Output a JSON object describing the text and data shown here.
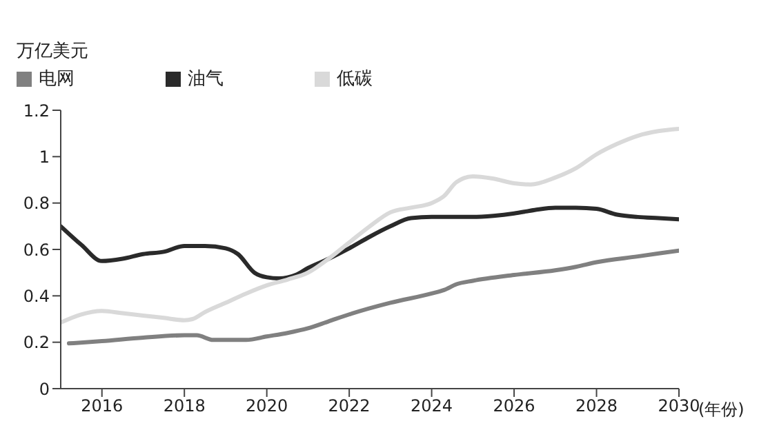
{
  "chart_data": {
    "type": "line",
    "ylabel": "万亿美元",
    "xlabel": "(年份)",
    "xlim": [
      2015,
      2030
    ],
    "xticks": [
      2016,
      2018,
      2020,
      2022,
      2024,
      2026,
      2028,
      2030
    ],
    "ylim": [
      0,
      1.2
    ],
    "yticks": [
      0,
      0.2,
      0.4,
      0.6,
      0.8,
      1,
      1.2
    ],
    "grid": false,
    "legend": "top left",
    "marker": "none",
    "line_style": "solid",
    "series": [
      {
        "name": "电网",
        "color": "#808080",
        "x": [
          2015.2,
          2016,
          2017,
          2018,
          2018.3,
          2018.7,
          2019.5,
          2020,
          2020.5,
          2021,
          2021.5,
          2022,
          2023,
          2024,
          2024.3,
          2024.6,
          2025,
          2026,
          2027,
          2027.5,
          2028,
          2029,
          2030
        ],
        "values": [
          0.195,
          0.205,
          0.22,
          0.23,
          0.23,
          0.21,
          0.21,
          0.225,
          0.24,
          0.26,
          0.29,
          0.32,
          0.37,
          0.41,
          0.425,
          0.45,
          0.465,
          0.49,
          0.51,
          0.525,
          0.545,
          0.57,
          0.595
        ]
      },
      {
        "name": "油气",
        "color": "#2a2a2a",
        "x": [
          2015,
          2015.5,
          2016,
          2016.5,
          2017,
          2017.5,
          2018,
          2018.5,
          2019,
          2019.3,
          2019.7,
          2020,
          2020.3,
          2020.7,
          2021,
          2021.5,
          2022,
          2022.5,
          2023,
          2023.5,
          2024,
          2025,
          2025.5,
          2026,
          2026.5,
          2027,
          2027.5,
          2028,
          2028.5,
          2029,
          2029.5,
          2030
        ],
        "values": [
          0.7,
          0.62,
          0.55,
          0.56,
          0.58,
          0.59,
          0.615,
          0.615,
          0.605,
          0.58,
          0.5,
          0.48,
          0.475,
          0.49,
          0.52,
          0.56,
          0.605,
          0.655,
          0.7,
          0.735,
          0.74,
          0.74,
          0.745,
          0.755,
          0.77,
          0.78,
          0.78,
          0.775,
          0.75,
          0.74,
          0.735,
          0.73
        ]
      },
      {
        "name": "低碳",
        "color": "#d9d9d9",
        "x": [
          2015,
          2015.5,
          2016,
          2016.5,
          2017,
          2017.5,
          2018,
          2018.2,
          2018.5,
          2019,
          2019.5,
          2020,
          2020.5,
          2021,
          2021.5,
          2022,
          2022.5,
          2023,
          2023.5,
          2024,
          2024.3,
          2024.6,
          2025,
          2025.5,
          2026,
          2026.4,
          2027,
          2027.5,
          2028,
          2028.5,
          2029,
          2029.5,
          2030
        ],
        "values": [
          0.285,
          0.32,
          0.335,
          0.325,
          0.315,
          0.305,
          0.295,
          0.3,
          0.33,
          0.37,
          0.41,
          0.445,
          0.47,
          0.5,
          0.56,
          0.63,
          0.7,
          0.76,
          0.78,
          0.8,
          0.83,
          0.89,
          0.915,
          0.905,
          0.885,
          0.88,
          0.91,
          0.95,
          1.01,
          1.055,
          1.09,
          1.11,
          1.12
        ]
      }
    ]
  }
}
